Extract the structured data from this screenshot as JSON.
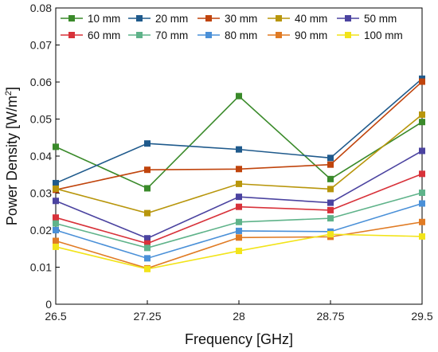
{
  "chart_data": {
    "type": "line",
    "title": "",
    "xlabel": "Frequency [GHz]",
    "ylabel_main": "Power Density [W/m",
    "ylabel_sup": "2",
    "ylabel_end": "]",
    "x": [
      26.5,
      27.25,
      28,
      28.75,
      29.5
    ],
    "x_tick_labels": [
      "26.5",
      "27.25",
      "28",
      "28.75",
      "29.5"
    ],
    "xlim": [
      26.5,
      29.5
    ],
    "ylim": [
      0,
      0.08
    ],
    "y_ticks": [
      0,
      0.01,
      0.02,
      0.03,
      0.04,
      0.05,
      0.06,
      0.07,
      0.08
    ],
    "y_tick_labels": [
      "0",
      "0.01",
      "0.02",
      "0.03",
      "0.04",
      "0.05",
      "0.06",
      "0.07",
      "0.08"
    ],
    "grid": false,
    "legend_position": "top",
    "marker": "square",
    "series": [
      {
        "name": "10 mm",
        "color": "#3a8a2a",
        "values": [
          0.0425,
          0.0313,
          0.0562,
          0.0338,
          0.0492
        ]
      },
      {
        "name": "20 mm",
        "color": "#1f5a8c",
        "values": [
          0.0327,
          0.0434,
          0.0418,
          0.0395,
          0.0609
        ]
      },
      {
        "name": "30 mm",
        "color": "#c0440c",
        "values": [
          0.0309,
          0.0363,
          0.0365,
          0.0377,
          0.0601
        ]
      },
      {
        "name": "40 mm",
        "color": "#b8960c",
        "values": [
          0.0312,
          0.0246,
          0.0325,
          0.0311,
          0.0512
        ]
      },
      {
        "name": "50 mm",
        "color": "#4b43a0",
        "values": [
          0.0279,
          0.0178,
          0.029,
          0.0274,
          0.0414
        ]
      },
      {
        "name": "60 mm",
        "color": "#d8323a",
        "values": [
          0.0234,
          0.0164,
          0.0263,
          0.0254,
          0.0352
        ]
      },
      {
        "name": "70 mm",
        "color": "#5fb38a",
        "values": [
          0.0218,
          0.0152,
          0.0222,
          0.0232,
          0.0301
        ]
      },
      {
        "name": "80 mm",
        "color": "#4a90d8",
        "values": [
          0.02,
          0.0124,
          0.0198,
          0.0196,
          0.0272
        ]
      },
      {
        "name": "90 mm",
        "color": "#e07b24",
        "values": [
          0.0171,
          0.0097,
          0.018,
          0.0182,
          0.0222
        ]
      },
      {
        "name": "100 mm",
        "color": "#f2e41a",
        "values": [
          0.0155,
          0.0095,
          0.0144,
          0.0189,
          0.0183
        ]
      }
    ]
  }
}
